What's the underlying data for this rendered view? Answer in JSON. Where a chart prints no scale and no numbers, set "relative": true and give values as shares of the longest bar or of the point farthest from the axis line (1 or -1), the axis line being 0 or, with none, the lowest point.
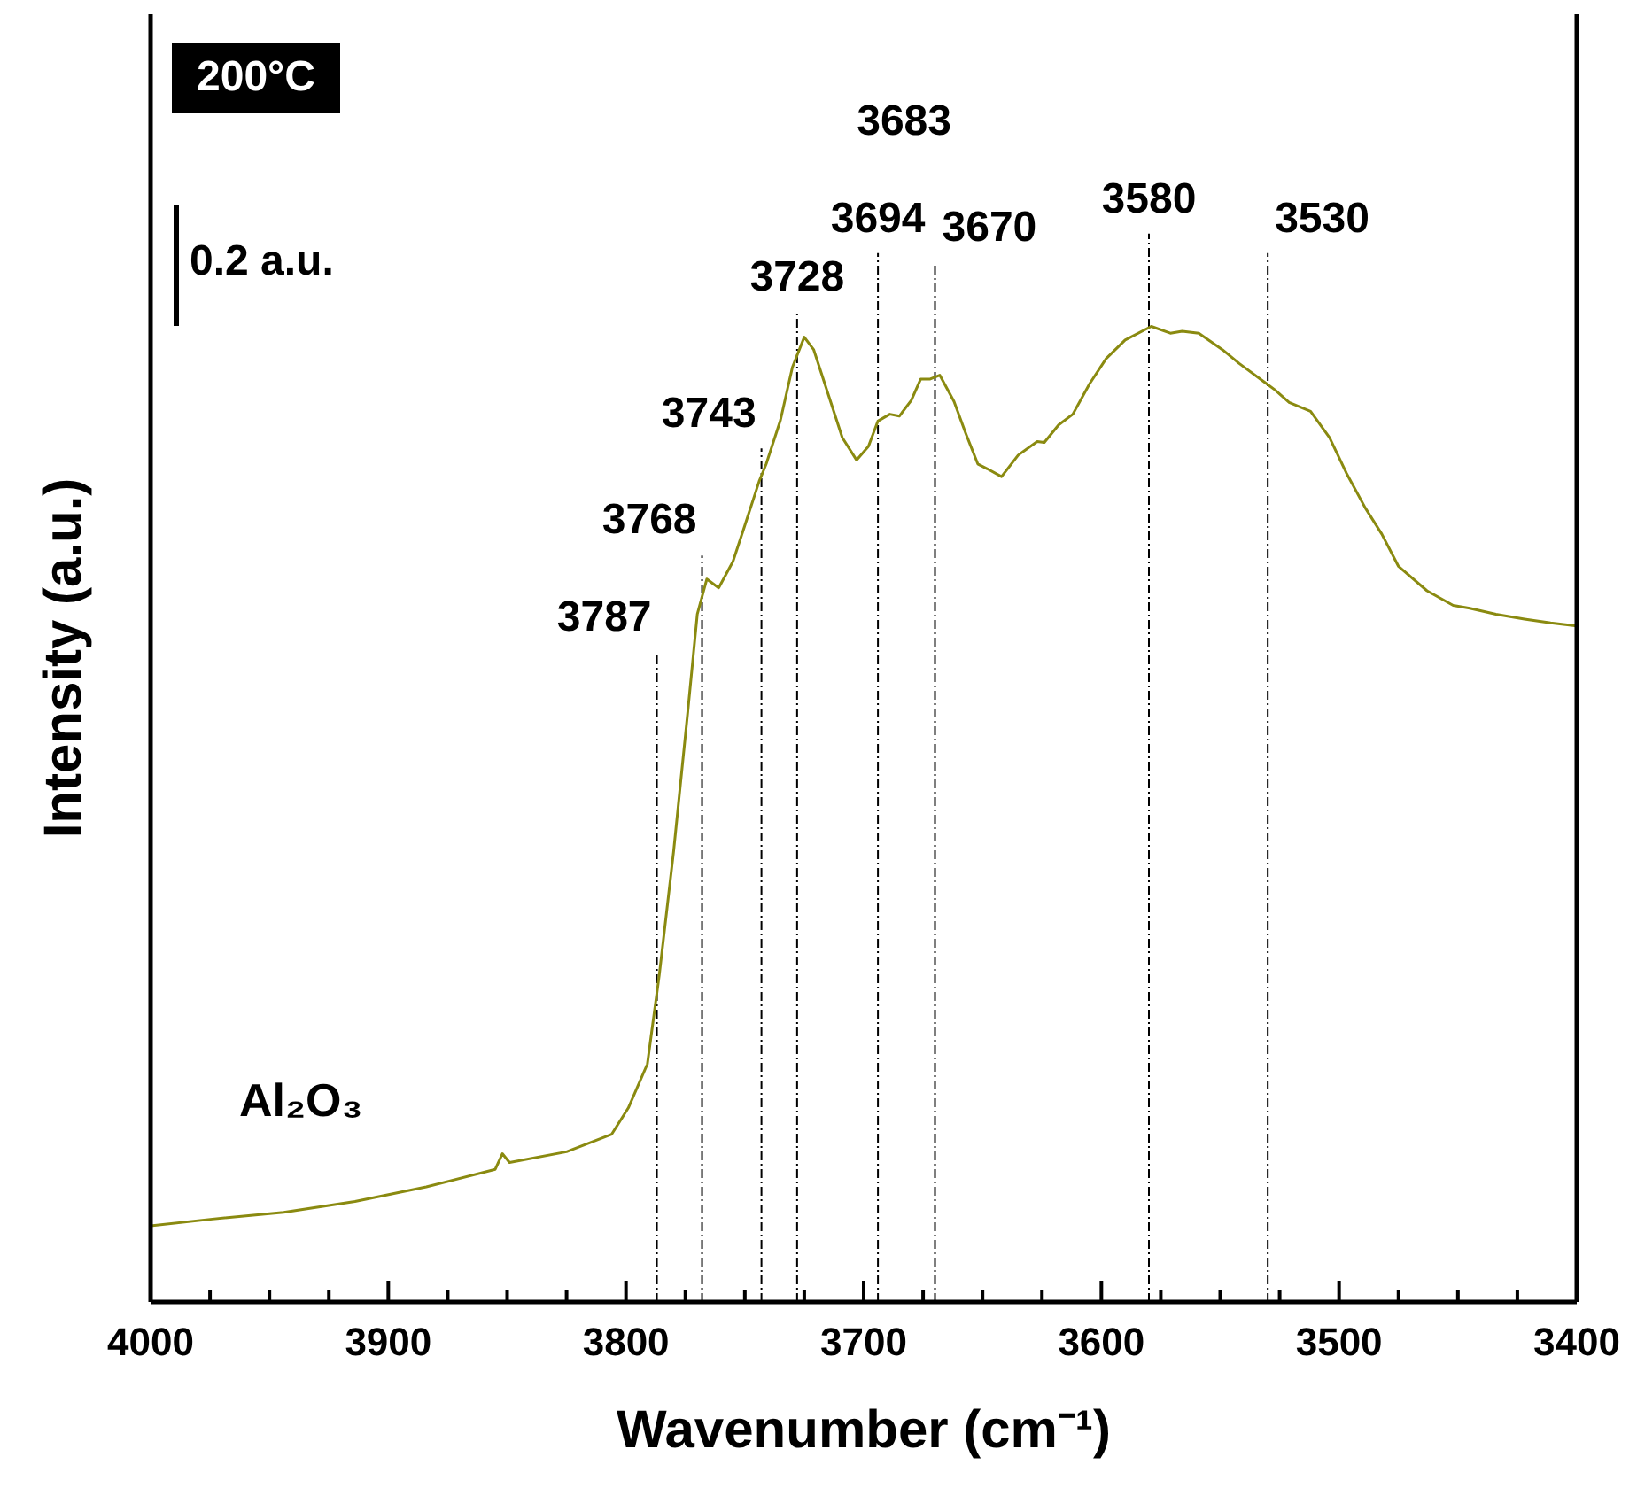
{
  "chart_data": {
    "type": "line",
    "relative": true,
    "xlabel": "Wavenumber (cm⁻¹)",
    "ylabel": "Intensity (a.u.)",
    "xlim": [
      4000,
      3400
    ],
    "xticks": [
      4000,
      {
        "value": 3975,
        "label": null
      },
      {
        "value": 3950,
        "label": null
      },
      {
        "value": 3925,
        "label": null
      },
      3900,
      {
        "value": 3875,
        "label": null
      },
      {
        "value": 3850,
        "label": null
      },
      {
        "value": 3825,
        "label": null
      },
      3800,
      {
        "value": 3775,
        "label": null
      },
      {
        "value": 3750,
        "label": null
      },
      {
        "value": 3725,
        "label": null
      },
      3700,
      {
        "value": 3675,
        "label": null
      },
      {
        "value": 3650,
        "label": null
      },
      {
        "value": 3625,
        "label": null
      },
      3600,
      {
        "value": 3575,
        "label": null
      },
      {
        "value": 3550,
        "label": null
      },
      {
        "value": 3525,
        "label": null
      },
      3500,
      {
        "value": 3475,
        "label": null
      },
      {
        "value": 3450,
        "label": null
      },
      {
        "value": 3425,
        "label": null
      },
      3400
    ],
    "tick_labels": "x",
    "marker": "none",
    "series": [
      {
        "color": "#8a8a10",
        "x": [
          4000,
          3974,
          3944,
          3914,
          3884,
          3855,
          3852,
          3849,
          3825,
          3806,
          3799,
          3791,
          3786,
          3780,
          3774,
          3770,
          3766,
          3761,
          3755,
          3750,
          3744,
          3741,
          3735,
          3730,
          3725,
          3721,
          3715,
          3709,
          3703,
          3698,
          3694,
          3689,
          3685,
          3680,
          3676,
          3672,
          3668,
          3662,
          3657,
          3652,
          3648,
          3642,
          3635,
          3627,
          3624,
          3618,
          3612,
          3605,
          3598,
          3590,
          3579,
          3571,
          3566,
          3559,
          3549,
          3542,
          3532,
          3527,
          3521,
          3512,
          3504,
          3497,
          3489,
          3482,
          3475,
          3463,
          3452,
          3445,
          3434,
          3422,
          3411,
          3400
        ],
        "values": [
          0.078,
          0.085,
          0.092,
          0.103,
          0.118,
          0.136,
          0.152,
          0.143,
          0.154,
          0.172,
          0.199,
          0.244,
          0.335,
          0.461,
          0.605,
          0.705,
          0.741,
          0.732,
          0.759,
          0.796,
          0.841,
          0.859,
          0.904,
          0.958,
          0.989,
          0.976,
          0.931,
          0.886,
          0.863,
          0.877,
          0.903,
          0.91,
          0.908,
          0.924,
          0.946,
          0.946,
          0.95,
          0.923,
          0.89,
          0.859,
          0.854,
          0.846,
          0.868,
          0.882,
          0.881,
          0.899,
          0.91,
          0.941,
          0.967,
          0.986,
          1.0,
          0.993,
          0.995,
          0.993,
          0.976,
          0.962,
          0.944,
          0.935,
          0.922,
          0.913,
          0.886,
          0.85,
          0.814,
          0.787,
          0.754,
          0.729,
          0.714,
          0.711,
          0.705,
          0.7,
          0.696,
          0.693
        ]
      }
    ],
    "ref_lines": [
      {
        "axis": "x",
        "value": 3787,
        "label": "3787",
        "color": "#000000",
        "line_style": "dashed"
      },
      {
        "axis": "x",
        "value": 3768,
        "label": "3768",
        "color": "#000000",
        "line_style": "dashed"
      },
      {
        "axis": "x",
        "value": 3743,
        "label": "3743",
        "color": "#000000",
        "line_style": "dashed"
      },
      {
        "axis": "x",
        "value": 3728,
        "label": "3728",
        "color": "#000000",
        "line_style": "dashed"
      },
      {
        "axis": "x",
        "value": 3694,
        "label": "3694",
        "color": "#000000",
        "line_style": "dashed"
      },
      {
        "axis": "x",
        "value": 3670,
        "label": "3670",
        "color": "#000000",
        "line_style": "dashed"
      },
      {
        "axis": "x",
        "value": 3580,
        "label": "3580",
        "color": "#000000",
        "line_style": "dashed"
      },
      {
        "axis": "x",
        "value": 3530,
        "label": "3530",
        "color": "#000000",
        "line_style": "dashed"
      }
    ],
    "annotations": [
      "200°C",
      "0.2 a.u.",
      "Al₂O₃",
      "3683"
    ]
  }
}
